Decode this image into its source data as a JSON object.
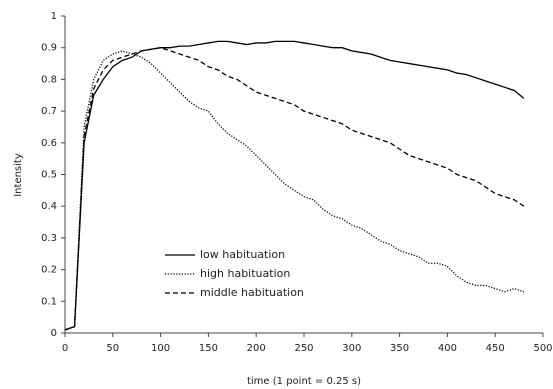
{
  "chart_data": {
    "type": "line",
    "x_label": "time (1 point = 0.25 s)",
    "y_label": "Intensity",
    "x": [
      0,
      10,
      20,
      30,
      40,
      50,
      60,
      70,
      80,
      90,
      100,
      110,
      120,
      130,
      140,
      150,
      160,
      170,
      180,
      190,
      200,
      210,
      220,
      230,
      240,
      250,
      260,
      270,
      280,
      290,
      300,
      310,
      320,
      330,
      340,
      350,
      360,
      370,
      380,
      390,
      400,
      410,
      420,
      430,
      440,
      450,
      460,
      470,
      480
    ],
    "series": [
      {
        "name": "low habituation",
        "color": "#000000",
        "dash": "none",
        "values": [
          0.01,
          0.02,
          0.6,
          0.75,
          0.8,
          0.84,
          0.86,
          0.87,
          0.89,
          0.895,
          0.9,
          0.9,
          0.905,
          0.905,
          0.91,
          0.915,
          0.92,
          0.92,
          0.915,
          0.91,
          0.915,
          0.915,
          0.92,
          0.92,
          0.92,
          0.915,
          0.91,
          0.905,
          0.9,
          0.9,
          0.89,
          0.885,
          0.88,
          0.87,
          0.86,
          0.855,
          0.85,
          0.845,
          0.84,
          0.835,
          0.83,
          0.82,
          0.815,
          0.805,
          0.795,
          0.785,
          0.775,
          0.765,
          0.74
        ]
      },
      {
        "name": "high habituation",
        "color": "#000000",
        "dash": "1.2,1.6",
        "values": [
          0.01,
          0.02,
          0.65,
          0.8,
          0.86,
          0.88,
          0.89,
          0.88,
          0.87,
          0.85,
          0.82,
          0.79,
          0.76,
          0.73,
          0.71,
          0.7,
          0.66,
          0.63,
          0.61,
          0.59,
          0.56,
          0.53,
          0.5,
          0.47,
          0.45,
          0.43,
          0.42,
          0.39,
          0.37,
          0.36,
          0.34,
          0.33,
          0.31,
          0.29,
          0.28,
          0.26,
          0.25,
          0.24,
          0.22,
          0.22,
          0.21,
          0.18,
          0.16,
          0.15,
          0.15,
          0.14,
          0.13,
          0.14,
          0.13
        ]
      },
      {
        "name": "middle habituation",
        "color": "#000000",
        "dash": "5,3",
        "values": [
          0.01,
          0.02,
          0.62,
          0.77,
          0.83,
          0.86,
          0.87,
          0.88,
          0.89,
          0.895,
          0.9,
          0.89,
          0.88,
          0.87,
          0.86,
          0.84,
          0.83,
          0.81,
          0.8,
          0.78,
          0.76,
          0.75,
          0.74,
          0.73,
          0.72,
          0.7,
          0.69,
          0.68,
          0.67,
          0.66,
          0.64,
          0.63,
          0.62,
          0.61,
          0.6,
          0.58,
          0.56,
          0.55,
          0.54,
          0.53,
          0.52,
          0.5,
          0.49,
          0.48,
          0.46,
          0.44,
          0.43,
          0.42,
          0.4
        ]
      }
    ],
    "xlim": [
      0,
      500
    ],
    "xticks": [
      0,
      50,
      100,
      150,
      200,
      250,
      300,
      350,
      400,
      450,
      500
    ],
    "ylim": [
      0,
      1
    ],
    "yticks": [
      0,
      0.1,
      0.2,
      0.3,
      0.4,
      0.5,
      0.6,
      0.7,
      0.8,
      0.9,
      1
    ],
    "grid": false
  }
}
